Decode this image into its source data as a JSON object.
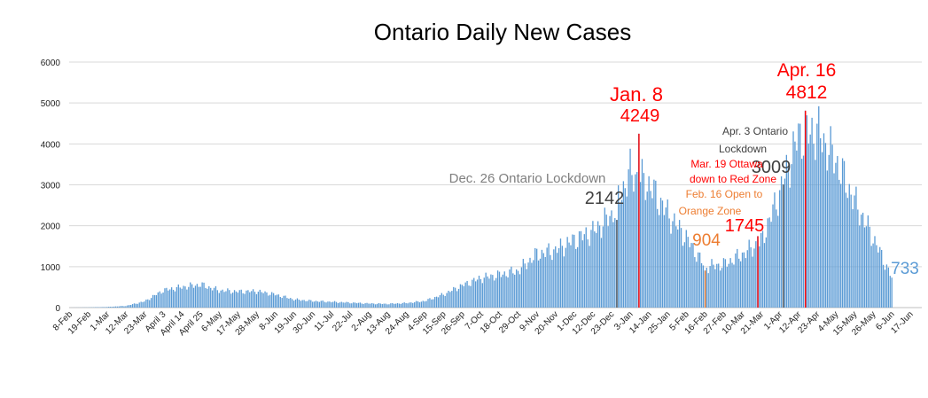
{
  "chart_data": {
    "type": "bar",
    "title": "Ontario Daily New Cases",
    "xlabel": "",
    "ylabel": "",
    "ylim": [
      0,
      6000
    ],
    "y_ticks": [
      "0",
      "1000",
      "2000",
      "3000",
      "4000",
      "5000",
      "6000"
    ],
    "grid": true,
    "legend": "none",
    "bar_color": "#5b9bd5",
    "x_tick_labels": [
      "8-Feb",
      "19-Feb",
      "1-Mar",
      "12-Mar",
      "23-Mar",
      "April 3",
      "April 14",
      "April 25",
      "6-May",
      "17-May",
      "28-May",
      "8-Jun",
      "19-Jun",
      "30-Jun",
      "11-Jul",
      "22-Jul",
      "2-Aug",
      "13-Aug",
      "24-Aug",
      "4-Sep",
      "15-Sep",
      "26-Sep",
      "7-Oct",
      "18-Oct",
      "29-Oct",
      "9-Nov",
      "20-Nov",
      "1-Dec",
      "12-Dec",
      "23-Dec",
      "3-Jan",
      "14-Jan",
      "25-Jan",
      "5-Feb",
      "16-Feb",
      "27-Feb",
      "10-Mar",
      "21-Mar",
      "1-Apr",
      "12-Apr",
      "23-Apr",
      "4-May",
      "15-May",
      "26-May",
      "6-Jun",
      "17-Jun"
    ],
    "series": [
      {
        "values_every_11_days": [
          0,
          5,
          15,
          40,
          150,
          420,
          500,
          560,
          420,
          390,
          400,
          320,
          200,
          160,
          140,
          120,
          100,
          90,
          110,
          160,
          320,
          540,
          720,
          800,
          900,
          1300,
          1400,
          1650,
          1850,
          2250,
          3300,
          3000,
          2300,
          1700,
          1000,
          1050,
          1300,
          1600,
          2800,
          4200,
          4300,
          3600,
          2600,
          1700,
          733
        ],
        "start_date": "8-Feb"
      }
    ],
    "markers": [
      {
        "date": "26-Dec",
        "value": 2142,
        "color": "#595959"
      },
      {
        "date": "8-Jan",
        "value": 4249,
        "color": "#ff0000"
      },
      {
        "date": "16-Feb",
        "value": 904,
        "color": "#ed7d31"
      },
      {
        "date": "19-Mar",
        "value": 1745,
        "color": "#ff0000"
      },
      {
        "date": "3-Apr",
        "value": 3009,
        "color": "#595959"
      },
      {
        "date": "16-Apr",
        "value": 4812,
        "color": "#ff0000"
      }
    ]
  },
  "annotations": {
    "dec26_label": "Dec. 26 Ontario Lockdown",
    "dec26_value": "2142",
    "jan8_date": "Jan. 8",
    "jan8_value": "4249",
    "feb16_value": "904",
    "feb16_line1": "Feb. 16 Open to",
    "feb16_line2": "Orange Zone",
    "mar19_value": "1745",
    "mar19_line1": "Mar. 19 Ottawa",
    "mar19_line2": "down to Red Zone",
    "apr3_line1": "Apr. 3 Ontario",
    "apr3_line2": "Lockdown",
    "apr3_value": "3009",
    "apr16_date": "Apr. 16",
    "apr16_value": "4812",
    "last_value": "733"
  },
  "colors": {
    "red": "#ff0000",
    "orange": "#ed7d31",
    "gray": "#595959",
    "blue_label": "#5b9bd5"
  }
}
